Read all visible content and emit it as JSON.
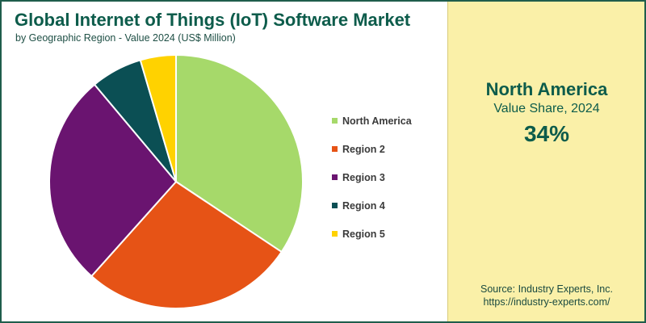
{
  "title": "Global Internet of Things (IoT) Software Market",
  "subtitle": "by Geographic Region - Value 2024 (US$ Million)",
  "chart_data": {
    "type": "pie",
    "categories": [
      "North America",
      "Region 2",
      "Region 3",
      "Region 4",
      "Region 5"
    ],
    "values": [
      34,
      27,
      27,
      6.5,
      4.5
    ],
    "colors": [
      "#a6d96a",
      "#e65316",
      "#6a1470",
      "#0b4f54",
      "#ffd200"
    ],
    "legend_position": "right"
  },
  "highlight": {
    "region": "North America",
    "label": "Value Share, 2024",
    "value": "34%"
  },
  "source": {
    "line1": "Source: Industry Experts, Inc.",
    "line2": "https://industry-experts.com/"
  }
}
